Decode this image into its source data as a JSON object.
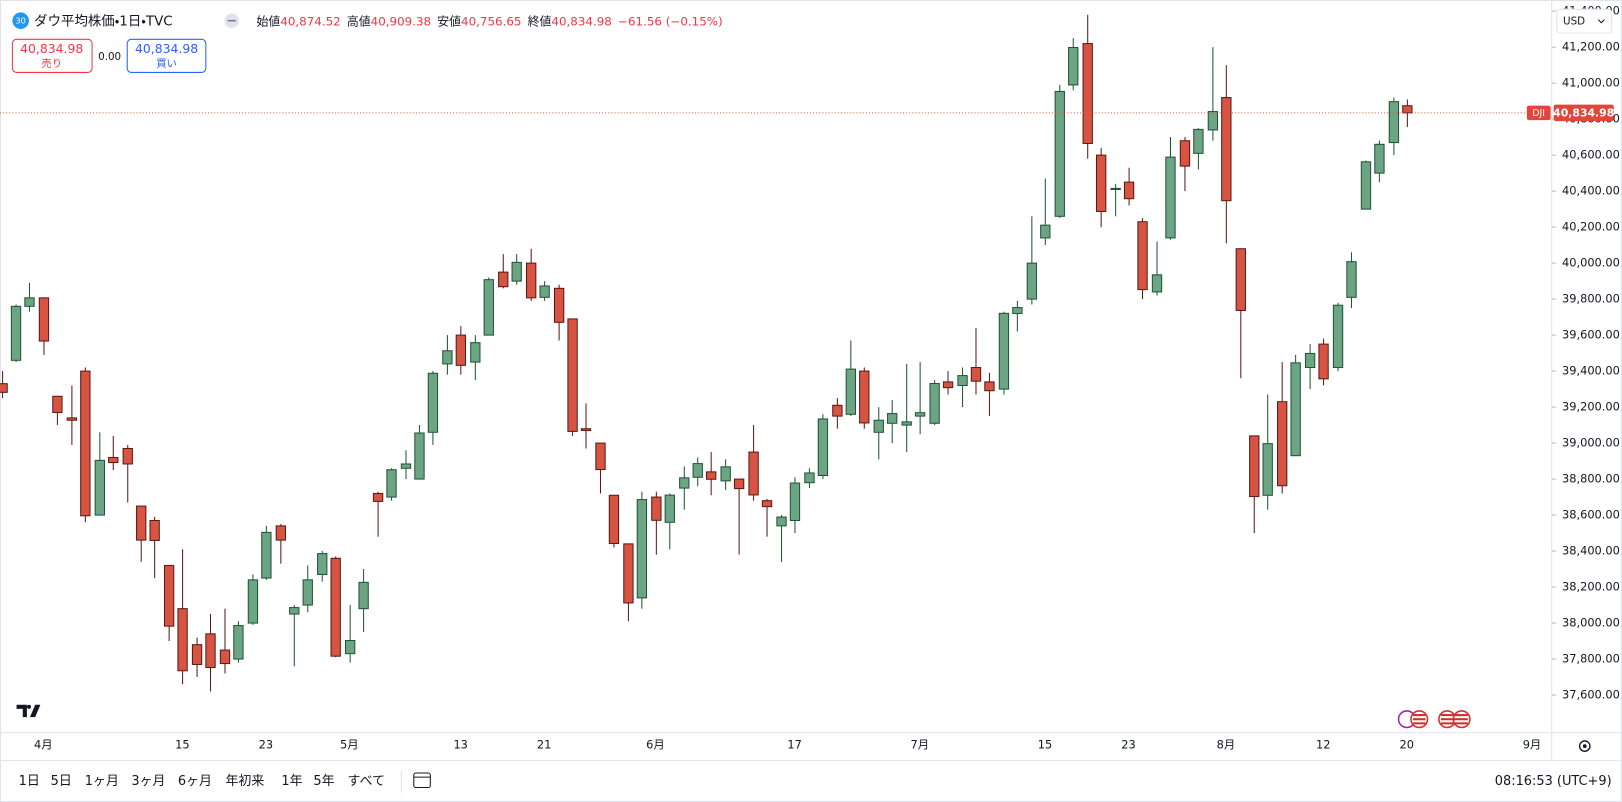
{
  "header": {
    "badge": "30",
    "title": "ダウ平均株価・1日・TVC",
    "ohlc": [
      {
        "label": "始値",
        "value": "40,874.52"
      },
      {
        "label": "高値",
        "value": "40,909.38"
      },
      {
        "label": "安値",
        "value": "40,756.65"
      },
      {
        "label": "終値",
        "value": "40,834.98"
      }
    ],
    "change": "−61.56 (−0.15%)"
  },
  "trade": {
    "sell": {
      "price": "40,834.98",
      "label": "売り"
    },
    "spread": "0.00",
    "buy": {
      "price": "40,834.98",
      "label": "買い"
    }
  },
  "currency": "USD",
  "range_buttons": [
    "1日",
    "5日",
    "1ヶ月",
    "3ヶ月",
    "6ヶ月",
    "年初来",
    "1年",
    "5年",
    "すべて"
  ],
  "clock": "08:16:53 (UTC+9)",
  "chart_data": {
    "type": "candlestick",
    "categories": [
      null,
      null,
      null,
      "4月",
      null,
      null,
      null,
      null,
      null,
      null,
      null,
      null,
      null,
      "15",
      null,
      null,
      null,
      null,
      null,
      "23",
      null,
      null,
      null,
      null,
      null,
      "5月",
      null,
      null,
      null,
      null,
      null,
      null,
      null,
      "13",
      null,
      null,
      null,
      null,
      null,
      "21",
      null,
      null,
      null,
      null,
      null,
      null,
      null,
      "6月",
      null,
      null,
      null,
      null,
      null,
      null,
      null,
      null,
      null,
      "17",
      null,
      null,
      null,
      null,
      null,
      null,
      null,
      null,
      "7月",
      null,
      null,
      null,
      null,
      null,
      null,
      null,
      null,
      "15",
      null,
      null,
      null,
      null,
      null,
      "23",
      null,
      null,
      null,
      null,
      null,
      null,
      "8月",
      null,
      null,
      null,
      null,
      null,
      null,
      "12",
      null,
      null,
      null,
      null,
      null,
      "20",
      null,
      null,
      null,
      null,
      null,
      null,
      null,
      null,
      "9月"
    ],
    "open": [
      39330,
      39460,
      39760,
      39807,
      39260,
      39140,
      39400,
      38600,
      38920,
      38970,
      38650,
      38570,
      38320,
      38080,
      37880,
      37940,
      37850,
      37800,
      38000,
      38250,
      38540,
      38050,
      38100,
      38270,
      38360,
      37830,
      38080,
      38720,
      38700,
      38860,
      38800,
      39060,
      39440,
      39600,
      39450,
      39600,
      39950,
      39900,
      40000,
      39810,
      39860,
      39690,
      39080,
      39000,
      38710,
      38440,
      38140,
      38700,
      38560,
      38750,
      38810,
      38840,
      38790,
      38800,
      38950,
      38680,
      38540,
      38570,
      38780,
      38820,
      39210,
      39160,
      39400,
      39060,
      39110,
      39100,
      39150,
      39110,
      39340,
      39320,
      39420,
      39340,
      39300,
      39720,
      39800,
      40140,
      40260,
      40990,
      41220,
      40600,
      40410,
      40450,
      40230,
      39840,
      40140,
      40680,
      40610,
      40740,
      40920,
      40080,
      39040,
      38710,
      39230,
      38930,
      39420,
      39550,
      39420,
      39810,
      40300,
      40500,
      40670,
      40874.52,
      null,
      null,
      null,
      null,
      null,
      null,
      null,
      null,
      null
    ],
    "high": [
      39400,
      39770,
      39890,
      39810,
      39260,
      39320,
      39420,
      39060,
      39040,
      38990,
      38650,
      38590,
      38320,
      38410,
      37920,
      38050,
      38080,
      38010,
      38270,
      38540,
      38550,
      38100,
      38320,
      38400,
      38370,
      38100,
      38300,
      38730,
      38860,
      38960,
      39100,
      39400,
      39600,
      39650,
      39600,
      39920,
      40050,
      40050,
      40080,
      39900,
      39880,
      39690,
      39220,
      39000,
      38710,
      38440,
      38730,
      38730,
      38720,
      38870,
      38920,
      38950,
      38910,
      38800,
      39100,
      38690,
      38600,
      38810,
      38860,
      39160,
      39250,
      39570,
      39420,
      39200,
      39240,
      39440,
      39450,
      39350,
      39400,
      39420,
      39640,
      39390,
      39730,
      39790,
      40260,
      40470,
      40990,
      41250,
      41380,
      40640,
      40440,
      40530,
      40250,
      40120,
      40700,
      40700,
      40750,
      41200,
      41100,
      40080,
      39040,
      39270,
      39450,
      39490,
      39550,
      39580,
      39780,
      40060,
      40570,
      40680,
      40920,
      40909.38,
      null,
      null,
      null,
      null,
      null,
      null,
      null,
      null,
      null
    ],
    "low": [
      39250,
      39450,
      39730,
      39490,
      39100,
      38990,
      38560,
      38600,
      38850,
      38670,
      38340,
      38250,
      37900,
      37660,
      37700,
      37620,
      37720,
      37780,
      37990,
      38240,
      38330,
      37760,
      38060,
      38230,
      37810,
      37780,
      37950,
      38480,
      38680,
      38800,
      38800,
      38990,
      39380,
      39380,
      39350,
      39600,
      39860,
      39880,
      39790,
      39790,
      39570,
      39040,
      38970,
      38720,
      38420,
      38010,
      38080,
      38380,
      38410,
      38630,
      38760,
      38710,
      38740,
      38380,
      38680,
      38480,
      38340,
      38500,
      38750,
      38800,
      39080,
      39150,
      39080,
      38910,
      39000,
      38950,
      39050,
      39100,
      39270,
      39200,
      39270,
      39150,
      39270,
      39620,
      39770,
      40100,
      40250,
      40960,
      40580,
      40200,
      40260,
      40320,
      39800,
      39820,
      40130,
      40400,
      40520,
      40680,
      40110,
      39360,
      38500,
      38630,
      38720,
      38930,
      39300,
      39320,
      39400,
      39750,
      40300,
      40450,
      40600,
      40756.65,
      null,
      null,
      null,
      null,
      null,
      null,
      null,
      null,
      null
    ],
    "close": [
      39282,
      39760,
      39807,
      39567,
      39170,
      39127,
      38596,
      38904,
      38892,
      38884,
      38461,
      38459,
      37983,
      37735,
      37770,
      37753,
      37775,
      37986,
      38240,
      38504,
      38461,
      38086,
      38240,
      38386,
      37816,
      37903,
      38226,
      38676,
      38852,
      38884,
      39056,
      39388,
      39513,
      39432,
      39558,
      39908,
      39869,
      40004,
      39807,
      39873,
      39671,
      39065,
      39070,
      38853,
      38442,
      38112,
      38686,
      38571,
      38711,
      38807,
      38886,
      38799,
      38868,
      38747,
      38712,
      38647,
      38589,
      38778,
      38834,
      39134,
      39150,
      39411,
      39112,
      39127,
      39164,
      39118,
      39169,
      39331,
      39308,
      39375,
      39344,
      39291,
      39721,
      39753,
      40000,
      40211,
      40954,
      41198,
      40665,
      40287,
      40415,
      40358,
      39853,
      39935,
      40589,
      40539,
      40743,
      40842,
      40347,
      39737,
      38703,
      38997,
      38763,
      39446,
      39498,
      39357,
      39766,
      40008,
      40563,
      40660,
      40897,
      40834.98,
      null,
      null,
      null,
      null,
      null,
      null,
      null,
      null,
      null
    ],
    "up_color": "#6ba583",
    "up_border": "#225437",
    "down_color": "#d75442",
    "down_border": "#5b1a13",
    "ylim": [
      37391,
      41462
    ],
    "yticks": [
      {
        "value": 37600,
        "label": "37,600.00"
      },
      {
        "value": 37800,
        "label": "37,800.00"
      },
      {
        "value": 38000,
        "label": "38,000.00"
      },
      {
        "value": 38200,
        "label": "38,200.00"
      },
      {
        "value": 38400,
        "label": "38,400.00"
      },
      {
        "value": 38600,
        "label": "38,600.00"
      },
      {
        "value": 38800,
        "label": "38,800.00"
      },
      {
        "value": 39000,
        "label": "39,000.00"
      },
      {
        "value": 39200,
        "label": "39,200.00"
      },
      {
        "value": 39400,
        "label": "39,400.00"
      },
      {
        "value": 39600,
        "label": "39,600.00"
      },
      {
        "value": 39800,
        "label": "39,800.00"
      },
      {
        "value": 40000,
        "label": "40,000.00"
      },
      {
        "value": 40200,
        "label": "40,200.00"
      },
      {
        "value": 40400,
        "label": "40,400.00"
      },
      {
        "value": 40600,
        "label": "40,600.00"
      },
      {
        "value": 40800,
        "label": "40,800.00"
      },
      {
        "value": 41000,
        "label": "41,000.00"
      },
      {
        "value": 41200,
        "label": "41,200.00"
      },
      {
        "value": 41400,
        "label": "41,400.00"
      }
    ],
    "grid": false,
    "last_price": {
      "symbol": "DJI",
      "label": "40,834.98",
      "value": 40834.98
    }
  }
}
